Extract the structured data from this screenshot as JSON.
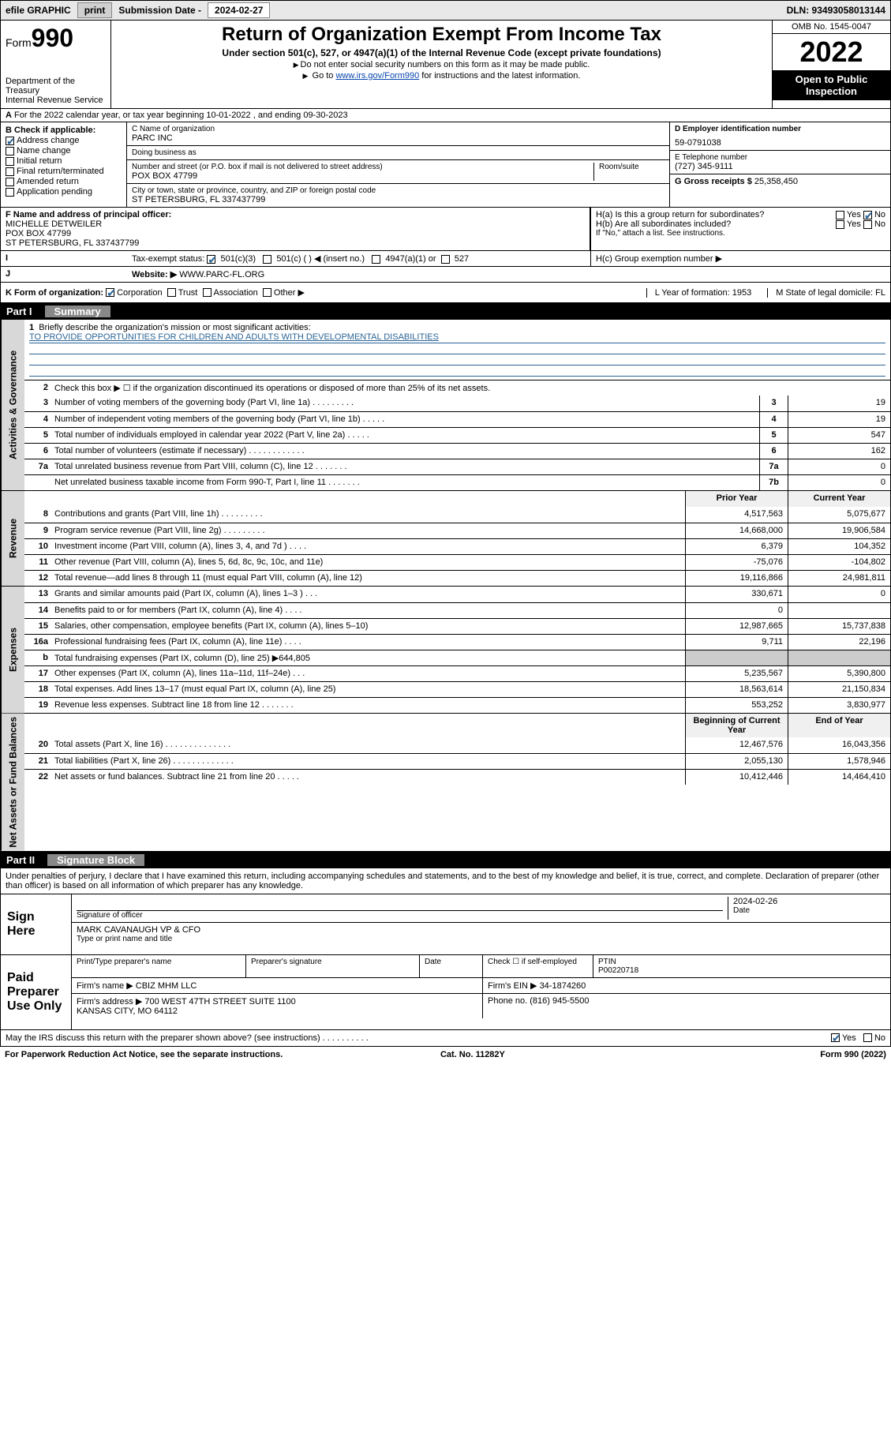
{
  "topbar": {
    "efile": "efile GRAPHIC",
    "print": "print",
    "sub_label": "Submission Date -",
    "sub_date": "2024-02-27",
    "dln": "DLN: 93493058013144"
  },
  "header": {
    "form_label": "Form",
    "form_no": "990",
    "dept": "Department of the Treasury\nInternal Revenue Service",
    "title": "Return of Organization Exempt From Income Tax",
    "sub": "Under section 501(c), 527, or 4947(a)(1) of the Internal Revenue Code (except private foundations)",
    "note1": "Do not enter social security numbers on this form as it may be made public.",
    "note2_pre": "Go to ",
    "note2_link": "www.irs.gov/Form990",
    "note2_post": " for instructions and the latest information.",
    "omb": "OMB No. 1545-0047",
    "year": "2022",
    "open": "Open to Public Inspection"
  },
  "lineA": "For the 2022 calendar year, or tax year beginning 10-01-2022  , and ending 09-30-2023",
  "secB": {
    "hdr": "B Check if applicable:",
    "opts": [
      "Address change",
      "Name change",
      "Initial return",
      "Final return/terminated",
      "Amended return",
      "Application pending"
    ],
    "checked": [
      true,
      false,
      false,
      false,
      false,
      false
    ]
  },
  "secC": {
    "name_lbl": "C Name of organization",
    "name": "PARC INC",
    "dba_lbl": "Doing business as",
    "dba": "",
    "addr_lbl": "Number and street (or P.O. box if mail is not delivered to street address)",
    "room_lbl": "Room/suite",
    "addr": "POX BOX 47799",
    "city_lbl": "City or town, state or province, country, and ZIP or foreign postal code",
    "city": "ST PETERSBURG, FL  337437799"
  },
  "secD": {
    "ein_lbl": "D Employer identification number",
    "ein": "59-0791038",
    "tel_lbl": "E Telephone number",
    "tel": "(727) 345-9111",
    "gross_lbl": "G Gross receipts $",
    "gross": "25,358,450"
  },
  "secF": {
    "lbl": "F Name and address of principal officer:",
    "val": "MICHELLE DETWEILER\nPOX BOX 47799\nST PETERSBURG, FL  337437799"
  },
  "secH": {
    "a": "H(a)  Is this a group return for subordinates?",
    "a_yes": "Yes",
    "a_no": "No",
    "b": "H(b)  Are all subordinates included?",
    "b_yes": "Yes",
    "b_no": "No",
    "b_note": "If \"No,\" attach a list. See instructions.",
    "c": "H(c)  Group exemption number ▶"
  },
  "secI": {
    "lbl": "Tax-exempt status:",
    "o1": "501(c)(3)",
    "o2": "501(c) (  ) ◀ (insert no.)",
    "o3": "4947(a)(1) or",
    "o4": "527"
  },
  "secJ": {
    "lbl": "Website: ▶",
    "val": "WWW.PARC-FL.ORG"
  },
  "secK": {
    "lbl": "K Form of organization:",
    "o1": "Corporation",
    "o2": "Trust",
    "o3": "Association",
    "o4": "Other ▶",
    "L": "L Year of formation: 1953",
    "M": "M State of legal domicile: FL"
  },
  "part1": {
    "hdr_pt": "Part I",
    "hdr_ti": "Summary",
    "l1a": "Briefly describe the organization's mission or most significant activities:",
    "l1b": "TO PROVIDE OPPORTUNITIES FOR CHILDREN AND ADULTS WITH DEVELOPMENTAL DISABILITIES",
    "l2": "Check this box ▶ ☐  if the organization discontinued its operations or disposed of more than 25% of its net assets.",
    "rows_gov": [
      {
        "n": "3",
        "d": "Number of voting members of the governing body (Part VI, line 1a)  .    .    .    .    .    .    .    .    .",
        "b": "3",
        "v": "19"
      },
      {
        "n": "4",
        "d": "Number of independent voting members of the governing body (Part VI, line 1b)  .    .    .    .    .",
        "b": "4",
        "v": "19"
      },
      {
        "n": "5",
        "d": "Total number of individuals employed in calendar year 2022 (Part V, line 2a)  .    .    .    .    .",
        "b": "5",
        "v": "547"
      },
      {
        "n": "6",
        "d": "Total number of volunteers (estimate if necessary)  .    .    .    .    .    .    .    .    .    .    .    .",
        "b": "6",
        "v": "162"
      },
      {
        "n": "7a",
        "d": "Total unrelated business revenue from Part VIII, column (C), line 12  .    .    .    .    .    .    .",
        "b": "7a",
        "v": "0"
      },
      {
        "n": "",
        "d": "Net unrelated business taxable income from Form 990-T, Part I, line 11  .    .    .    .    .    .    .",
        "b": "7b",
        "v": "0"
      }
    ],
    "col_prior": "Prior Year",
    "col_curr": "Current Year",
    "rows_rev": [
      {
        "n": "8",
        "d": "Contributions and grants (Part VIII, line 1h)  .    .    .    .    .    .    .    .    .",
        "p": "4,517,563",
        "c": "5,075,677"
      },
      {
        "n": "9",
        "d": "Program service revenue (Part VIII, line 2g)  .    .    .    .    .    .    .    .    .",
        "p": "14,668,000",
        "c": "19,906,584"
      },
      {
        "n": "10",
        "d": "Investment income (Part VIII, column (A), lines 3, 4, and 7d )  .    .    .    .",
        "p": "6,379",
        "c": "104,352"
      },
      {
        "n": "11",
        "d": "Other revenue (Part VIII, column (A), lines 5, 6d, 8c, 9c, 10c, and 11e)",
        "p": "-75,076",
        "c": "-104,802"
      },
      {
        "n": "12",
        "d": "Total revenue—add lines 8 through 11 (must equal Part VIII, column (A), line 12)",
        "p": "19,116,866",
        "c": "24,981,811"
      }
    ],
    "rows_exp": [
      {
        "n": "13",
        "d": "Grants and similar amounts paid (Part IX, column (A), lines 1–3 )  .    .    .",
        "p": "330,671",
        "c": "0"
      },
      {
        "n": "14",
        "d": "Benefits paid to or for members (Part IX, column (A), line 4)  .    .    .    .",
        "p": "0",
        "c": ""
      },
      {
        "n": "15",
        "d": "Salaries, other compensation, employee benefits (Part IX, column (A), lines 5–10)",
        "p": "12,987,665",
        "c": "15,737,838"
      },
      {
        "n": "16a",
        "d": "Professional fundraising fees (Part IX, column (A), line 11e)  .    .    .    .",
        "p": "9,711",
        "c": "22,196"
      },
      {
        "n": "b",
        "d": "Total fundraising expenses (Part IX, column (D), line 25) ▶644,805",
        "p": "",
        "c": "",
        "shade": true
      },
      {
        "n": "17",
        "d": "Other expenses (Part IX, column (A), lines 11a–11d, 11f–24e)  .    .    .",
        "p": "5,235,567",
        "c": "5,390,800"
      },
      {
        "n": "18",
        "d": "Total expenses. Add lines 13–17 (must equal Part IX, column (A), line 25)",
        "p": "18,563,614",
        "c": "21,150,834"
      },
      {
        "n": "19",
        "d": "Revenue less expenses. Subtract line 18 from line 12  .    .    .    .    .    .    .",
        "p": "553,252",
        "c": "3,830,977"
      }
    ],
    "col_beg": "Beginning of Current Year",
    "col_end": "End of Year",
    "rows_net": [
      {
        "n": "20",
        "d": "Total assets (Part X, line 16)  .    .    .    .    .    .    .    .    .    .    .    .    .    .",
        "p": "12,467,576",
        "c": "16,043,356"
      },
      {
        "n": "21",
        "d": "Total liabilities (Part X, line 26)  .    .    .    .    .    .    .    .    .    .    .    .    .",
        "p": "2,055,130",
        "c": "1,578,946"
      },
      {
        "n": "22",
        "d": "Net assets or fund balances. Subtract line 21 from line 20  .    .    .    .    .",
        "p": "10,412,446",
        "c": "14,464,410"
      }
    ],
    "side_gov": "Activities & Governance",
    "side_rev": "Revenue",
    "side_exp": "Expenses",
    "side_net": "Net Assets or Fund Balances"
  },
  "part2": {
    "hdr_pt": "Part II",
    "hdr_ti": "Signature Block",
    "decl": "Under penalties of perjury, I declare that I have examined this return, including accompanying schedules and statements, and to the best of my knowledge and belief, it is true, correct, and complete. Declaration of preparer (other than officer) is based on all information of which preparer has any knowledge.",
    "sign_here": "Sign Here",
    "sig_off": "Signature of officer",
    "sig_date_lbl": "Date",
    "sig_date": "2024-02-26",
    "sig_name": "MARK CAVANAUGH VP & CFO",
    "sig_name_lbl": "Type or print name and title",
    "paid": "Paid Preparer Use Only",
    "prep_name_lbl": "Print/Type preparer's name",
    "prep_sig_lbl": "Preparer's signature",
    "date_lbl": "Date",
    "check_lbl": "Check ☐ if self-employed",
    "ptin_lbl": "PTIN",
    "ptin": "P00220718",
    "firm_name_lbl": "Firm's name  ▶",
    "firm_name": "CBIZ MHM LLC",
    "firm_ein_lbl": "Firm's EIN ▶",
    "firm_ein": "34-1874260",
    "firm_addr_lbl": "Firm's address ▶",
    "firm_addr": "700 WEST 47TH STREET SUITE 1100\nKANSAS CITY, MO  64112",
    "phone_lbl": "Phone no.",
    "phone": "(816) 945-5500",
    "discuss": "May the IRS discuss this return with the preparer shown above? (see instructions)  .    .    .    .    .    .    .    .    .    .",
    "d_yes": "Yes",
    "d_no": "No"
  },
  "footer": {
    "left": "For Paperwork Reduction Act Notice, see the separate instructions.",
    "mid": "Cat. No. 11282Y",
    "right": "Form 990 (2022)"
  }
}
